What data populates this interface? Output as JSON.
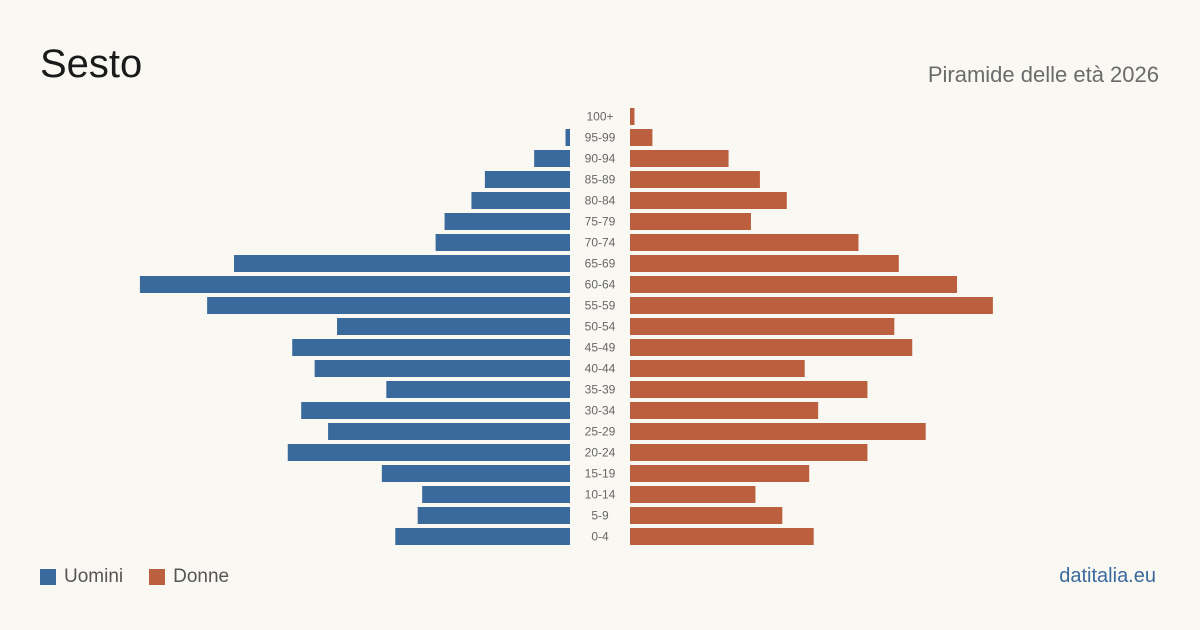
{
  "header": {
    "title": "Sesto",
    "subtitle": "Piramide delle età 2026"
  },
  "legend": {
    "men_label": "Uomini",
    "women_label": "Donne"
  },
  "source": "datitalia.eu",
  "colors": {
    "men": "#3a6a9c",
    "women": "#bb5f3e"
  },
  "chart_data": {
    "type": "bar",
    "orientation": "horizontal-population-pyramid",
    "title": "Sesto",
    "subtitle": "Piramide delle età 2026",
    "categories": [
      "100+",
      "95-99",
      "90-94",
      "85-89",
      "80-84",
      "75-79",
      "70-74",
      "65-69",
      "60-64",
      "55-59",
      "50-54",
      "45-49",
      "40-44",
      "35-39",
      "30-34",
      "25-29",
      "20-24",
      "15-19",
      "10-14",
      "5-9",
      "0-4"
    ],
    "series": [
      {
        "name": "Uomini",
        "values": [
          0,
          1,
          8,
          19,
          22,
          28,
          30,
          75,
          96,
          81,
          52,
          62,
          57,
          41,
          60,
          54,
          63,
          42,
          33,
          34,
          39
        ]
      },
      {
        "name": "Donne",
        "values": [
          1,
          5,
          22,
          29,
          35,
          27,
          51,
          60,
          73,
          81,
          59,
          63,
          39,
          53,
          42,
          66,
          53,
          40,
          28,
          34,
          41
        ]
      }
    ],
    "legend": "bottom-left",
    "grid": false
  }
}
